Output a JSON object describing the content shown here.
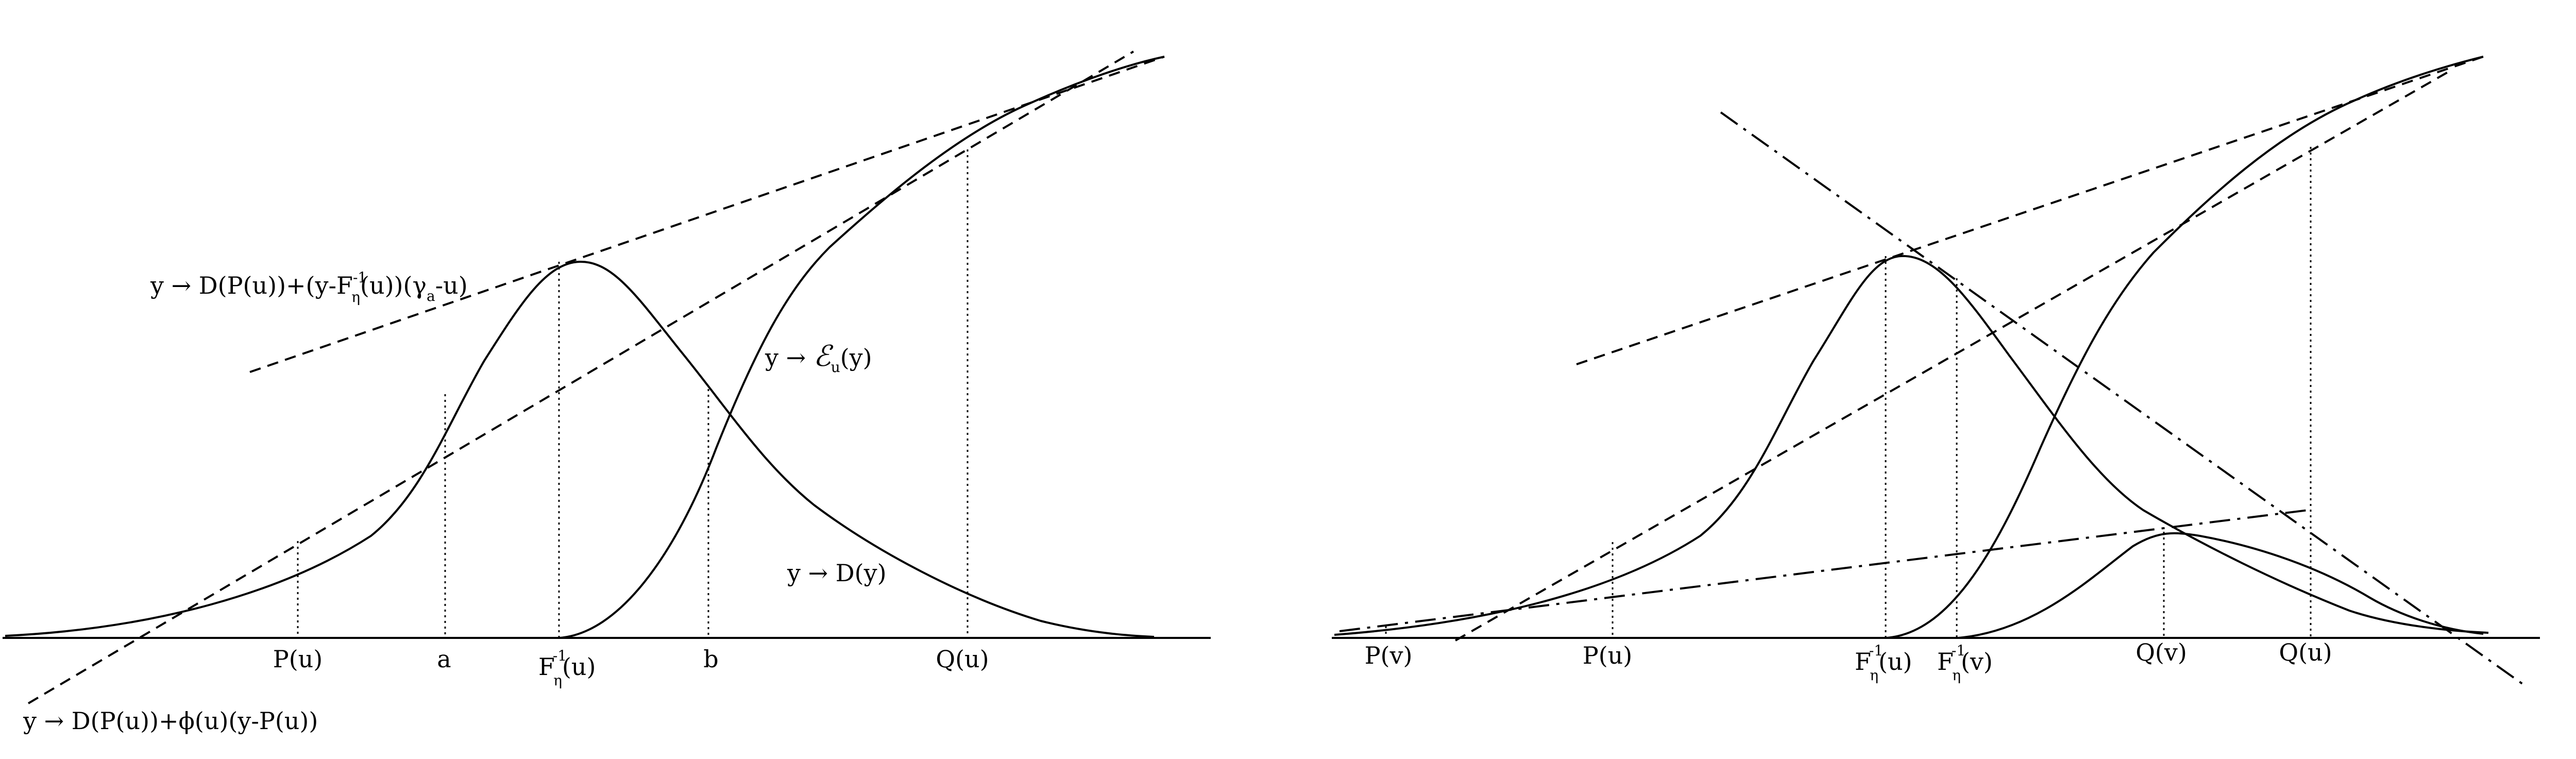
{
  "left_panel": {
    "tangent_label": {
      "pre": "y → D(P(u))+(y-F",
      "sup": "-1",
      "sub": "η",
      "mid": "(u))(γ",
      "sub2": "a",
      "post": "-u)"
    },
    "eu_label": {
      "pre": "y → ",
      "script": "ℰ",
      "sub": "u",
      "post": "(y)"
    },
    "d_label": "y → D(y)",
    "bottom_label": "y → D(P(u))+ϕ(u)(y-P(u))",
    "ticks": {
      "pu": "P(u)",
      "a": "a",
      "finv": {
        "base": "F",
        "sup": "-1",
        "sub": "η",
        "post": "(u)"
      },
      "b": "b",
      "qu": "Q(u)"
    }
  },
  "right_panel": {
    "ticks": {
      "pv": "P(v)",
      "pu": "P(u)",
      "finv_u": {
        "base": "F",
        "sup": "-1",
        "sub": "η",
        "post": "(u)"
      },
      "finv_v": {
        "base": "F",
        "sup": "-1",
        "sub": "η",
        "post": "(v)"
      },
      "qv": "Q(v)",
      "qu": "Q(u)"
    }
  }
}
